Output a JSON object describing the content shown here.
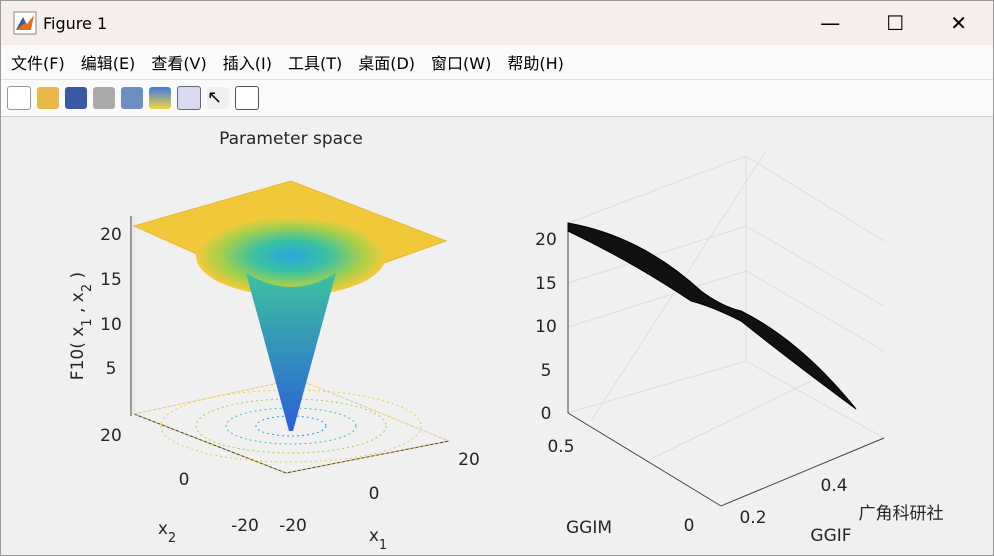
{
  "window": {
    "title": "Figure 1"
  },
  "menu": [
    "文件(F)",
    "编辑(E)",
    "查看(V)",
    "插入(I)",
    "工具(T)",
    "桌面(D)",
    "窗口(W)",
    "帮助(H)"
  ],
  "plots": [
    {
      "title": "Parameter space",
      "zlabel": [
        "F10( x",
        "1",
        " , x",
        "2",
        " )"
      ],
      "xlabel": [
        "x",
        "1"
      ],
      "ylabel": [
        "x",
        "2"
      ],
      "zticks": [
        5,
        10,
        15,
        20
      ],
      "yticks": [
        20,
        0,
        -20
      ],
      "xticks": [
        -20,
        0,
        20
      ]
    },
    {
      "xlabel": "GGIF",
      "ylabel": "GGIM",
      "zticks": [
        0,
        5,
        10,
        15,
        20
      ],
      "yticks": [
        0,
        0.5
      ],
      "xticks": [
        0.2,
        0.4
      ]
    }
  ],
  "watermark": "广角科研社"
}
